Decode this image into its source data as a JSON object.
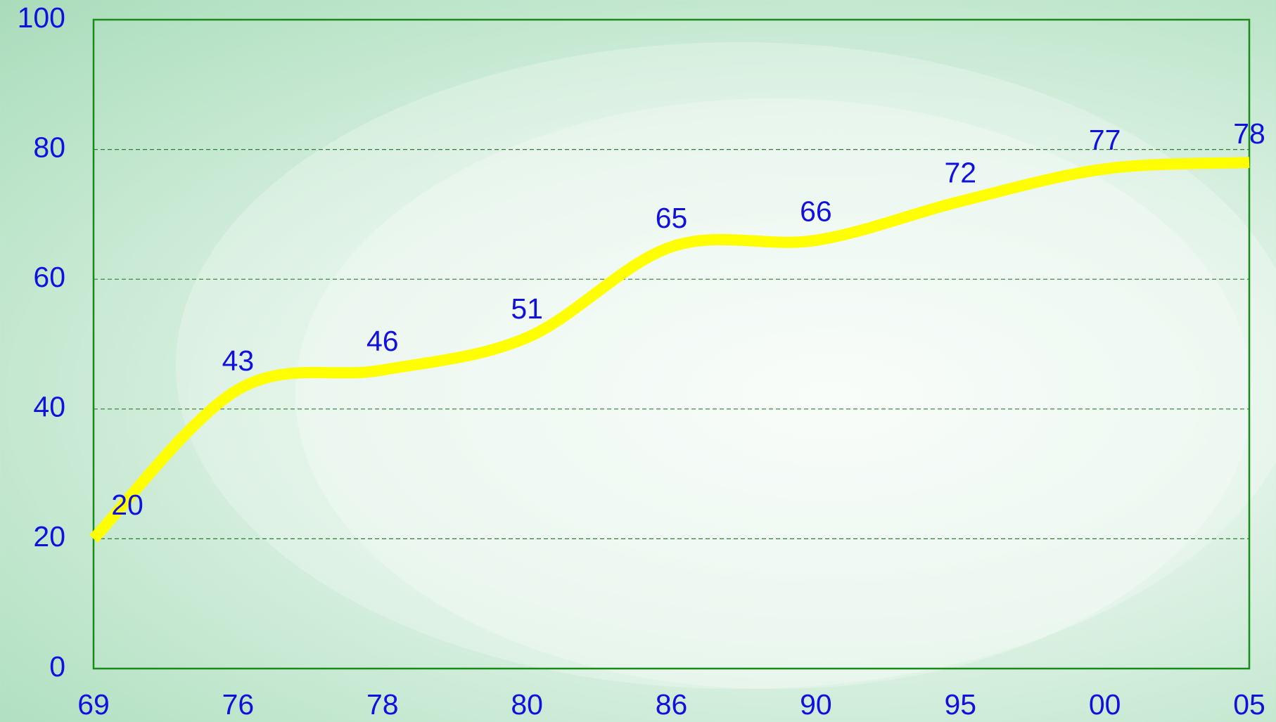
{
  "chart_data": {
    "type": "line",
    "categories": [
      "69",
      "76",
      "78",
      "80",
      "86",
      "90",
      "95",
      "00",
      "05"
    ],
    "values": [
      20,
      43,
      46,
      51,
      65,
      66,
      72,
      77,
      78
    ],
    "color": "#ffff00",
    "ylim": [
      0,
      100
    ],
    "yticks": [
      0,
      20,
      40,
      60,
      80,
      100
    ],
    "grid": true
  }
}
